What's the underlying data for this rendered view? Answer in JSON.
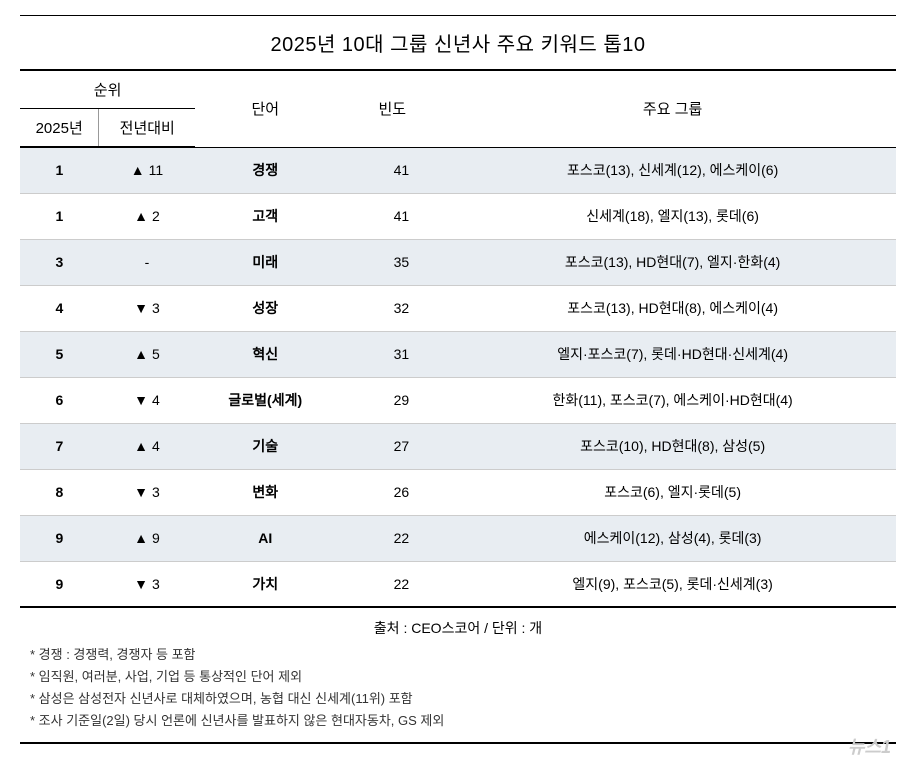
{
  "title": "2025년 10대 그룹 신년사 주요 키워드 톱10",
  "headers": {
    "rank_group": "순위",
    "rank_year": "2025년",
    "rank_change": "전년대비",
    "word": "단어",
    "frequency": "빈도",
    "groups": "주요 그룹"
  },
  "column_widths": {
    "rank_year": "9%",
    "rank_change": "11%",
    "word": "16%",
    "frequency": "13%",
    "groups": "51%"
  },
  "rows": [
    {
      "rank": "1",
      "change_dir": "up",
      "change_val": "11",
      "word": "경쟁",
      "freq": "41",
      "groups": "포스코(13), 신세계(12), 에스케이(6)"
    },
    {
      "rank": "1",
      "change_dir": "up",
      "change_val": "2",
      "word": "고객",
      "freq": "41",
      "groups": "신세계(18), 엘지(13), 롯데(6)"
    },
    {
      "rank": "3",
      "change_dir": "none",
      "change_val": "-",
      "word": "미래",
      "freq": "35",
      "groups": "포스코(13), HD현대(7), 엘지·한화(4)"
    },
    {
      "rank": "4",
      "change_dir": "down",
      "change_val": "3",
      "word": "성장",
      "freq": "32",
      "groups": "포스코(13), HD현대(8), 에스케이(4)"
    },
    {
      "rank": "5",
      "change_dir": "up",
      "change_val": "5",
      "word": "혁신",
      "freq": "31",
      "groups": "엘지·포스코(7), 롯데·HD현대·신세계(4)"
    },
    {
      "rank": "6",
      "change_dir": "down",
      "change_val": "4",
      "word": "글로벌(세계)",
      "freq": "29",
      "groups": "한화(11), 포스코(7), 에스케이·HD현대(4)"
    },
    {
      "rank": "7",
      "change_dir": "up",
      "change_val": "4",
      "word": "기술",
      "freq": "27",
      "groups": "포스코(10), HD현대(8), 삼성(5)"
    },
    {
      "rank": "8",
      "change_dir": "down",
      "change_val": "3",
      "word": "변화",
      "freq": "26",
      "groups": "포스코(6), 엘지·롯데(5)"
    },
    {
      "rank": "9",
      "change_dir": "up",
      "change_val": "9",
      "word": "AI",
      "freq": "22",
      "groups": "에스케이(12), 삼성(4), 롯데(3)"
    },
    {
      "rank": "9",
      "change_dir": "down",
      "change_val": "3",
      "word": "가치",
      "freq": "22",
      "groups": "엘지(9), 포스코(5), 롯데·신세계(3)"
    }
  ],
  "source": "출처 : CEO스코어 / 단위 : 개",
  "notes": [
    "* 경쟁 : 경쟁력, 경쟁자 등 포함",
    "* 임직원, 여러분, 사업, 기업 등 통상적인 단어 제외",
    "* 삼성은 삼성전자 신년사로 대체하였으며, 농협 대신 신세계(11위) 포함",
    "* 조사 기준일(2일) 당시 언론에 신년사를 발표하지 않은 현대자동차, GS 제외"
  ],
  "watermark": "뉴스1",
  "colors": {
    "border_dark": "#000000",
    "border_light": "#cccccc",
    "row_odd_bg": "#e8edf2",
    "text": "#333333",
    "watermark": "#cccccc"
  },
  "typography": {
    "title_size": 20,
    "header_size": 15,
    "body_size": 14,
    "notes_size": 13
  }
}
